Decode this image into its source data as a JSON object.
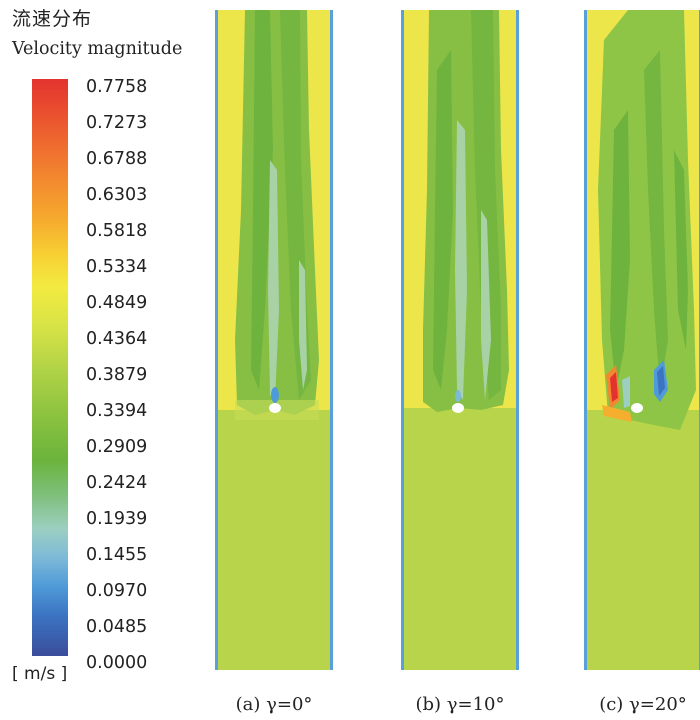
{
  "legend": {
    "title_cn": "流速分布",
    "title_en": "Velocity magnitude",
    "unit": "[ m/s ]",
    "ticks": [
      "0.7758",
      "0.7273",
      "0.6788",
      "0.6303",
      "0.5818",
      "0.5334",
      "0.4849",
      "0.4364",
      "0.3879",
      "0.3394",
      "0.2909",
      "0.2424",
      "0.1939",
      "0.1455",
      "0.0970",
      "0.0485",
      "0.0000"
    ],
    "colors": [
      "#e3332f",
      "#f2872f",
      "#f7d335",
      "#f3ea40",
      "#b3d447",
      "#6bb43c",
      "#9ccfc1",
      "#4f9ad8",
      "#3a4d9b"
    ]
  },
  "panels": [
    {
      "caption": "(a) γ=0°"
    },
    {
      "caption": "(b) γ=10°"
    },
    {
      "caption": "(c) γ=20°"
    }
  ]
}
